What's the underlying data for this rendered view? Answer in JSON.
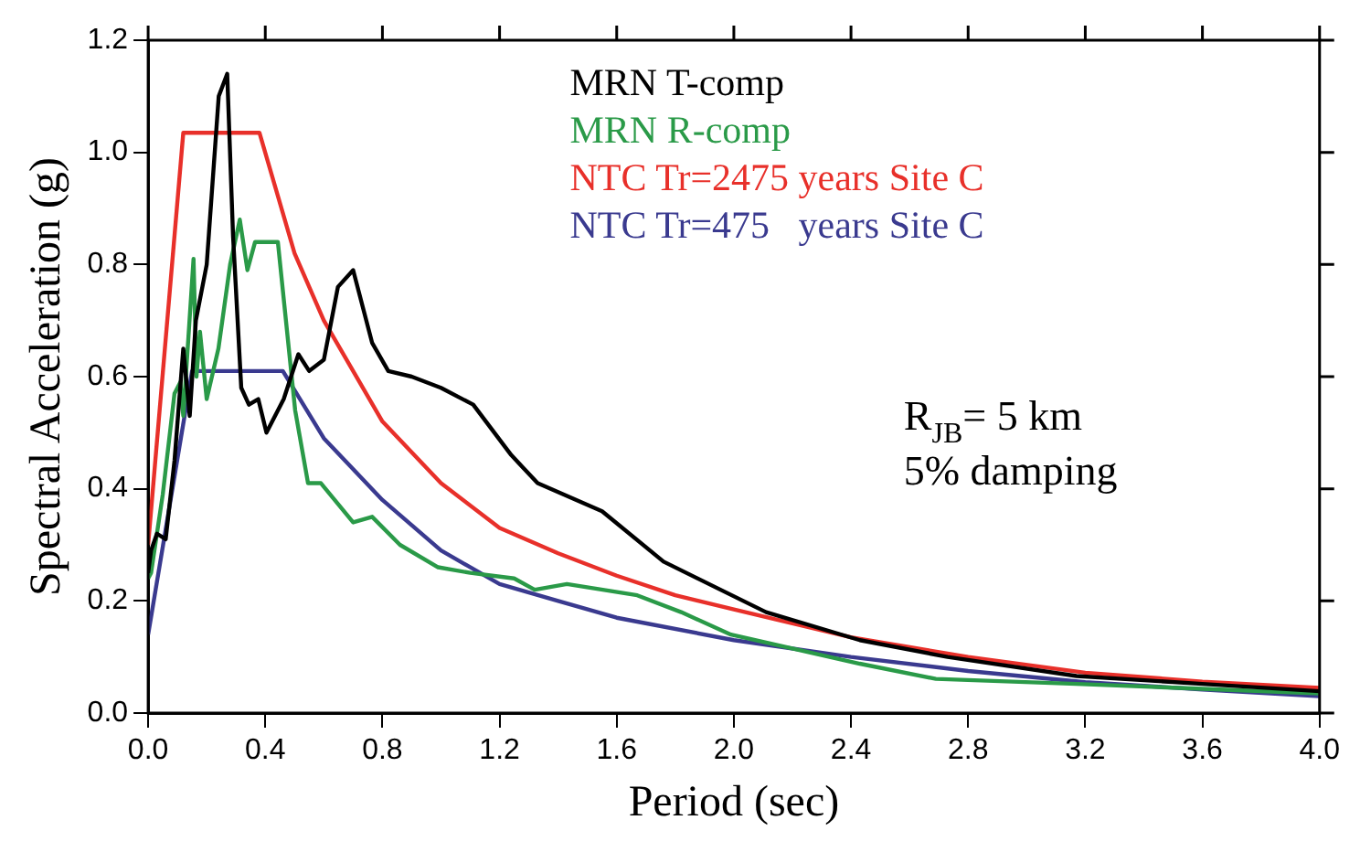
{
  "chart_data": {
    "type": "line",
    "xlabel": "Period (sec)",
    "ylabel": "Spectral Acceleration (g)",
    "xlim": [
      0,
      4
    ],
    "xticks": [
      {
        "value": 0,
        "label": "0.0"
      },
      0.4,
      0.8,
      1.2,
      1.6,
      {
        "value": 2,
        "label": "2.0"
      },
      2.4,
      2.8,
      3.2,
      3.6,
      {
        "value": 4,
        "label": "4.0"
      }
    ],
    "ylim": [
      0,
      1.2
    ],
    "yticks": [
      {
        "value": 0,
        "label": "0.0"
      },
      0.2,
      0.4,
      0.6,
      0.8,
      {
        "value": 1,
        "label": "1.0"
      },
      1.2
    ],
    "grid": false,
    "legend": "top",
    "marker": "none",
    "line_style": "solid",
    "annotations": [
      "R$_{JB}$= 5 km",
      "5% damping"
    ],
    "series": [
      {
        "name": "MRN T-comp",
        "color": "#000000",
        "x": [
          0,
          0.01,
          0.03,
          0.06,
          0.09,
          0.12,
          0.142,
          0.163,
          0.2,
          0.241,
          0.27,
          0.29,
          0.318,
          0.344,
          0.376,
          0.404,
          0.463,
          0.513,
          0.55,
          0.6,
          0.648,
          0.7,
          0.765,
          0.82,
          0.9,
          1.0,
          1.11,
          1.24,
          1.33,
          1.55,
          1.76,
          2.11,
          2.43,
          2.73,
          3.17,
          3.6,
          4.0
        ],
        "values": [
          0.25,
          0.29,
          0.32,
          0.31,
          0.45,
          0.65,
          0.53,
          0.7,
          0.8,
          1.1,
          1.14,
          0.85,
          0.58,
          0.55,
          0.56,
          0.5,
          0.56,
          0.64,
          0.61,
          0.63,
          0.76,
          0.79,
          0.66,
          0.61,
          0.6,
          0.58,
          0.55,
          0.46,
          0.41,
          0.36,
          0.27,
          0.18,
          0.13,
          0.1,
          0.066,
          0.052,
          0.039
        ]
      },
      {
        "name": "MRN R-comp",
        "color": "#2a9a48",
        "x": [
          0,
          0.01,
          0.05,
          0.09,
          0.11,
          0.12,
          0.155,
          0.165,
          0.177,
          0.2,
          0.24,
          0.28,
          0.313,
          0.339,
          0.365,
          0.443,
          0.502,
          0.546,
          0.59,
          0.7,
          0.765,
          0.86,
          0.99,
          1.1,
          1.25,
          1.32,
          1.43,
          1.67,
          1.82,
          1.99,
          2.43,
          2.69,
          3.17,
          4.0
        ],
        "values": [
          0.24,
          0.25,
          0.39,
          0.57,
          0.59,
          0.53,
          0.81,
          0.6,
          0.68,
          0.56,
          0.65,
          0.8,
          0.88,
          0.79,
          0.84,
          0.84,
          0.54,
          0.41,
          0.41,
          0.34,
          0.35,
          0.3,
          0.26,
          0.25,
          0.24,
          0.22,
          0.23,
          0.21,
          0.18,
          0.14,
          0.088,
          0.061,
          0.052,
          0.035
        ]
      },
      {
        "name": "NTC Tr=2475 years Site C",
        "color": "#e8302a",
        "x": [
          0,
          0.12,
          0.38,
          0.5,
          0.6,
          0.8,
          1.0,
          1.2,
          1.4,
          1.6,
          1.8,
          2.0,
          2.2,
          2.4,
          2.8,
          3.2,
          3.6,
          4.0
        ],
        "values": [
          0.3,
          1.035,
          1.035,
          0.82,
          0.7,
          0.52,
          0.41,
          0.33,
          0.285,
          0.245,
          0.21,
          0.185,
          0.16,
          0.135,
          0.1,
          0.072,
          0.056,
          0.045
        ]
      },
      {
        "name": "NTC Tr=475   years Site C",
        "color": "#3a3a8f",
        "x": [
          0,
          0.15,
          0.46,
          0.6,
          0.8,
          1.0,
          1.2,
          1.4,
          1.6,
          2.0,
          2.4,
          2.8,
          3.2,
          3.6,
          4.0
        ],
        "values": [
          0.14,
          0.61,
          0.61,
          0.49,
          0.38,
          0.29,
          0.23,
          0.2,
          0.17,
          0.13,
          0.1,
          0.075,
          0.055,
          0.042,
          0.03
        ]
      }
    ]
  }
}
